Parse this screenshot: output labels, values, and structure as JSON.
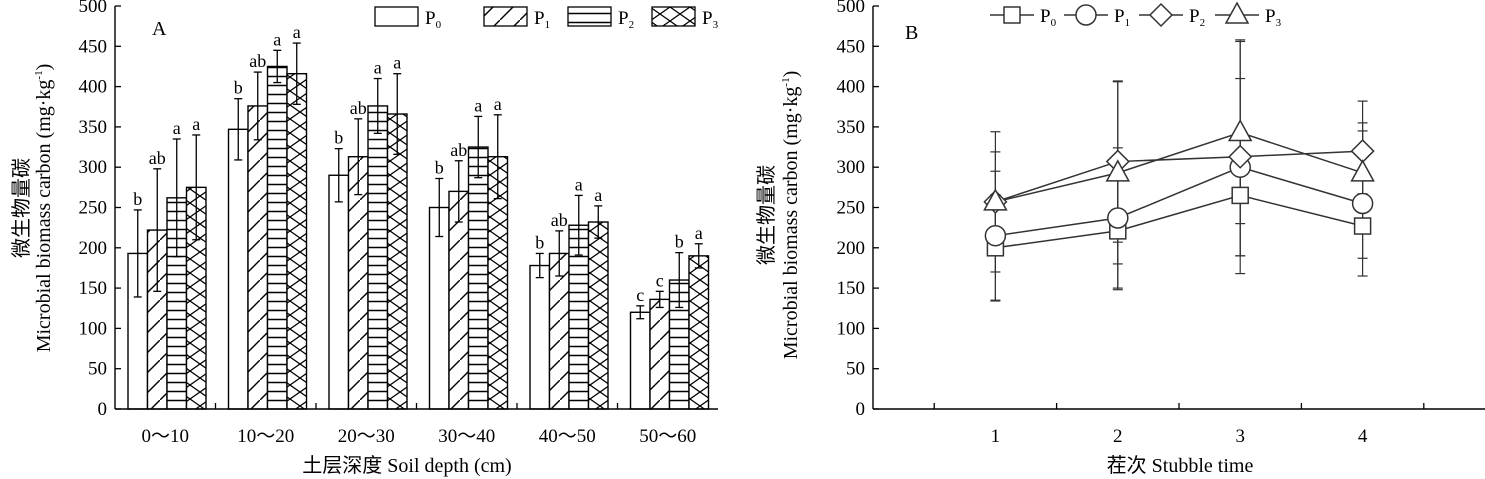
{
  "chart_data": [
    {
      "type": "bar",
      "panel": "A",
      "ylabel_cn": "微生物量碳",
      "ylabel_en": "Microbial biomass carbon (mg·kg",
      "ylabel_unit_sup": "-1",
      "ylabel_close": ")",
      "xlabel": "土层深度 Soil depth (cm)",
      "ylim": [
        0,
        500
      ],
      "yticks": [
        0,
        50,
        100,
        150,
        200,
        250,
        300,
        350,
        400,
        450,
        500
      ],
      "categories": [
        "0～10",
        "10～20",
        "20～30",
        "30～40",
        "40～50",
        "50～60"
      ],
      "legend": [
        "P0",
        "P1",
        "P2",
        "P3"
      ],
      "series": [
        {
          "name": "P0",
          "pattern": "empty",
          "values": [
            193,
            347,
            290,
            250,
            178,
            120
          ],
          "errors": [
            54,
            38,
            33,
            36,
            15,
            8
          ],
          "labels": [
            "b",
            "b",
            "b",
            "b",
            "b",
            "c"
          ]
        },
        {
          "name": "P1",
          "pattern": "diagonal",
          "values": [
            222,
            376,
            313,
            270,
            193,
            136
          ],
          "errors": [
            76,
            42,
            47,
            38,
            28,
            10
          ],
          "labels": [
            "ab",
            "ab",
            "ab",
            "ab",
            "ab",
            "c"
          ]
        },
        {
          "name": "P2",
          "pattern": "horizontal",
          "values": [
            262,
            425,
            376,
            325,
            228,
            160
          ],
          "errors": [
            73,
            20,
            34,
            38,
            37,
            34
          ],
          "labels": [
            "a",
            "a",
            "a",
            "a",
            "a",
            "b"
          ]
        },
        {
          "name": "P3",
          "pattern": "cross",
          "values": [
            275,
            416,
            366,
            313,
            232,
            190
          ],
          "errors": [
            65,
            38,
            50,
            52,
            20,
            15
          ],
          "labels": [
            "a",
            "a",
            "a",
            "a",
            "a",
            "a"
          ]
        }
      ]
    },
    {
      "type": "line",
      "panel": "B",
      "ylabel_cn": "微生物量碳",
      "ylabel_en": "Microbial biomass carbon (mg·kg",
      "ylabel_unit_sup": "-1",
      "ylabel_close": ")",
      "xlabel": "茬次 Stubble time",
      "ylim": [
        0,
        500
      ],
      "yticks": [
        0,
        50,
        100,
        150,
        200,
        250,
        300,
        350,
        400,
        450,
        500
      ],
      "x": [
        1,
        2,
        3,
        4
      ],
      "xlim": [
        0,
        5
      ],
      "legend": [
        "P0",
        "P1",
        "P2",
        "P3"
      ],
      "series": [
        {
          "name": "P0",
          "marker": "square",
          "values": [
            200,
            221,
            265,
            227
          ],
          "errors": [
            66,
            73,
            75,
            40
          ]
        },
        {
          "name": "P1",
          "marker": "circle",
          "values": [
            215,
            237,
            300,
            255
          ],
          "errors": [
            80,
            87,
            110,
            90
          ]
        },
        {
          "name": "P2",
          "marker": "diamond",
          "values": [
            257,
            307,
            313,
            320
          ],
          "errors": [
            87,
            100,
            145,
            62
          ]
        },
        {
          "name": "P3",
          "marker": "triangle",
          "values": [
            257,
            293,
            343,
            293
          ],
          "errors": [
            62,
            113,
            113,
            62
          ]
        }
      ]
    }
  ]
}
